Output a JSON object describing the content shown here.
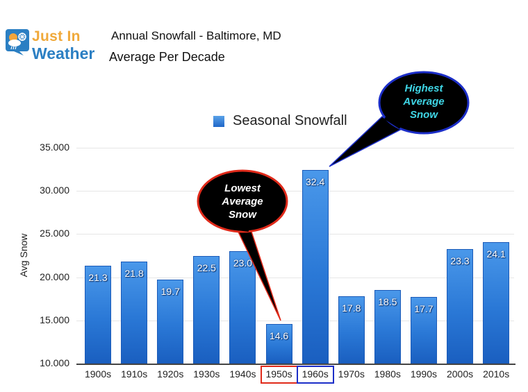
{
  "logo": {
    "line1": "Just In",
    "line2": "Weather",
    "icon": "weather-cloud-snow-icon",
    "colors": {
      "orange": "#f0a93a",
      "blue": "#2b7fc3"
    }
  },
  "header": {
    "title": "Annual Snowfall - Baltimore, MD",
    "subtitle": "Average Per Decade"
  },
  "legend": {
    "label": "Seasonal Snowfall",
    "color": "#2a78d6"
  },
  "annotations": {
    "lowest": {
      "lines": [
        "Lowest",
        "Average",
        "Snow"
      ],
      "text_color": "#ffffff",
      "border_color": "#e02a1a",
      "target": "1950s"
    },
    "highest": {
      "lines": [
        "Highest",
        "Average",
        "Snow"
      ],
      "text_color": "#3fd6e6",
      "border_color": "#1c2ec8",
      "target": "1960s"
    }
  },
  "chart_data": {
    "type": "bar",
    "title": "Annual Snowfall - Baltimore, MD",
    "subtitle": "Average Per Decade",
    "xlabel": "",
    "ylabel": "Avg Snow",
    "ylim": [
      10,
      35
    ],
    "yticks": [
      "10.000",
      "15.000",
      "20.000",
      "25.000",
      "30.000",
      "35.000"
    ],
    "grid": true,
    "legend_position": "top",
    "categories": [
      "1900s",
      "1910s",
      "1920s",
      "1930s",
      "1940s",
      "1950s",
      "1960s",
      "1970s",
      "1980s",
      "1990s",
      "2000s",
      "2010s"
    ],
    "series": [
      {
        "name": "Seasonal Snowfall",
        "values": [
          21.3,
          21.8,
          19.7,
          22.5,
          23.0,
          14.6,
          32.4,
          17.8,
          18.5,
          17.7,
          23.3,
          24.1
        ]
      }
    ],
    "value_labels": [
      "21.3",
      "21.8",
      "19.7",
      "22.5",
      "23.0",
      "14.6",
      "32.4",
      "17.8",
      "18.5",
      "17.7",
      "23.3",
      "24.1"
    ]
  }
}
